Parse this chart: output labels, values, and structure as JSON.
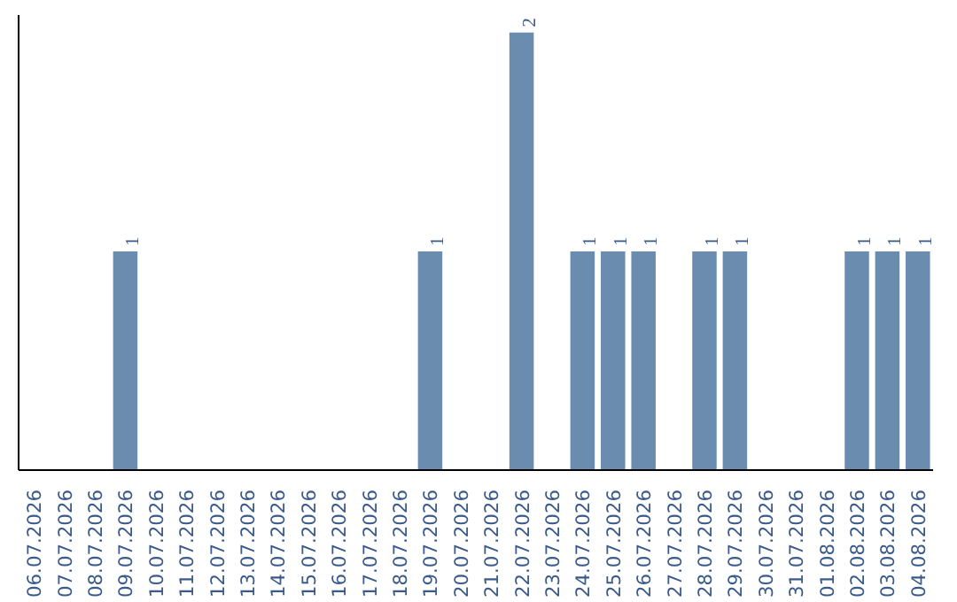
{
  "chart_data": {
    "type": "bar",
    "categories": [
      "06.07.2026",
      "07.07.2026",
      "08.07.2026",
      "09.07.2026",
      "10.07.2026",
      "11.07.2026",
      "12.07.2026",
      "13.07.2026",
      "14.07.2026",
      "15.07.2026",
      "16.07.2026",
      "17.07.2026",
      "18.07.2026",
      "19.07.2026",
      "20.07.2026",
      "21.07.2026",
      "22.07.2026",
      "23.07.2026",
      "24.07.2026",
      "25.07.2026",
      "26.07.2026",
      "27.07.2026",
      "28.07.2026",
      "29.07.2026",
      "30.07.2026",
      "31.07.2026",
      "01.08.2026",
      "02.08.2026",
      "03.08.2026",
      "04.08.2026"
    ],
    "values": [
      0,
      0,
      0,
      1,
      0,
      0,
      0,
      0,
      0,
      0,
      0,
      0,
      0,
      1,
      0,
      0,
      2,
      0,
      1,
      1,
      1,
      0,
      1,
      1,
      0,
      0,
      0,
      1,
      1,
      1
    ],
    "value_labels": [
      null,
      null,
      null,
      "1",
      null,
      null,
      null,
      null,
      null,
      null,
      null,
      null,
      null,
      "1",
      null,
      null,
      "2",
      null,
      "1",
      "1",
      "1",
      null,
      "1",
      "1",
      null,
      null,
      null,
      "1",
      "1",
      "1"
    ],
    "color": "#6a8caf",
    "ylim": [
      0,
      2.08
    ],
    "tick_labels": "x",
    "grid": false
  }
}
